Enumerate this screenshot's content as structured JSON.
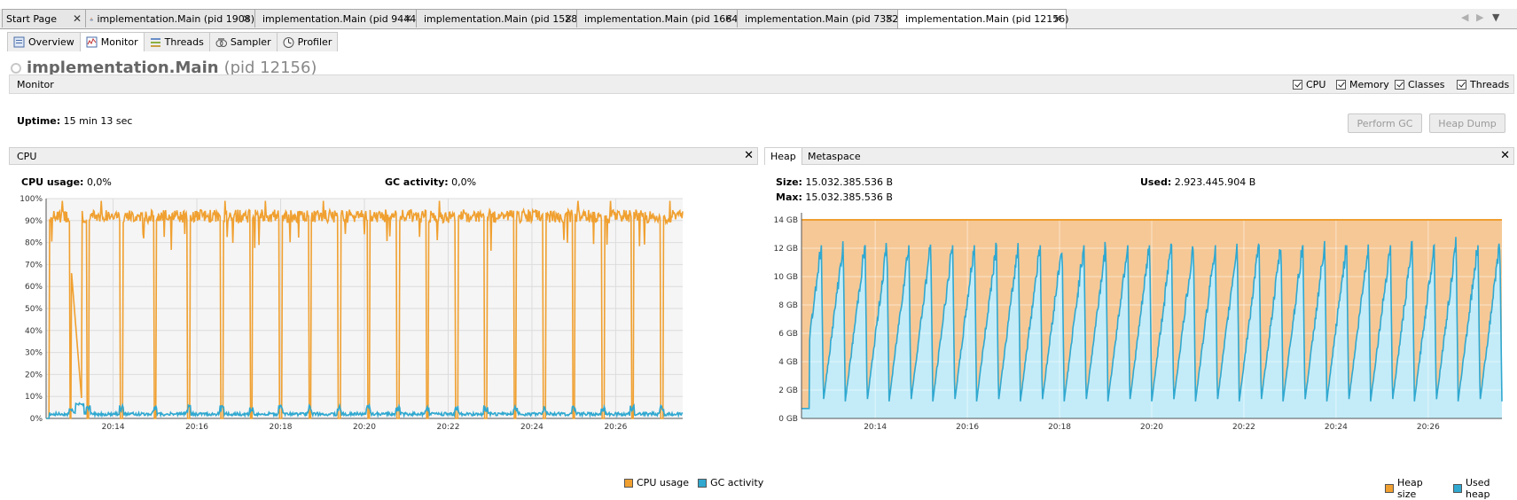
{
  "doc_tabs": [
    {
      "label": "Start Page",
      "icon": "start-page-icon",
      "active": false
    },
    {
      "label": "implementation.Main (pid 1908)",
      "icon": "java-app-icon",
      "active": false
    },
    {
      "label": "implementation.Main (pid 9444)",
      "icon": "java-app-icon",
      "active": false
    },
    {
      "label": "implementation.Main (pid 1528)",
      "icon": "java-app-icon",
      "active": false
    },
    {
      "label": "implementation.Main (pid 1664)",
      "icon": "java-app-icon",
      "active": false
    },
    {
      "label": "implementation.Main (pid 7352)",
      "icon": "java-app-icon",
      "active": false
    },
    {
      "label": "implementation.Main (pid 12156)",
      "icon": "java-app-icon",
      "active": true
    }
  ],
  "sub_tabs": [
    {
      "label": "Overview",
      "icon": "overview-icon",
      "active": false
    },
    {
      "label": "Monitor",
      "icon": "monitor-icon",
      "active": true
    },
    {
      "label": "Threads",
      "icon": "threads-icon",
      "active": false
    },
    {
      "label": "Sampler",
      "icon": "sampler-icon",
      "active": false
    },
    {
      "label": "Profiler",
      "icon": "profiler-icon",
      "active": false
    }
  ],
  "title": {
    "main": "implementation.Main",
    "pid": "(pid 12156)"
  },
  "monitor_bar": {
    "label": "Monitor",
    "checks": [
      {
        "label": "CPU",
        "checked": true
      },
      {
        "label": "Memory",
        "checked": true
      },
      {
        "label": "Classes",
        "checked": true
      },
      {
        "label": "Threads",
        "checked": true
      }
    ]
  },
  "uptime": {
    "label": "Uptime:",
    "value": "15 min 13 sec"
  },
  "buttons": {
    "perform_gc": "Perform GC",
    "heap_dump": "Heap Dump"
  },
  "cpu_panel": {
    "title": "CPU",
    "cpu_usage_label": "CPU usage:",
    "cpu_usage_value": "0,0%",
    "gc_activity_label": "GC activity:",
    "gc_activity_value": "0,0%",
    "legend": [
      {
        "label": "CPU usage",
        "color": "#f0a030"
      },
      {
        "label": "GC activity",
        "color": "#30a8d0"
      }
    ]
  },
  "heap_panel": {
    "tabs": [
      "Heap",
      "Metaspace"
    ],
    "size_label": "Size:",
    "size_value": "15.032.385.536 B",
    "used_label": "Used:",
    "used_value": "2.923.445.904 B",
    "max_label": "Max:",
    "max_value": "15.032.385.536 B",
    "legend": [
      {
        "label": "Heap size",
        "color": "#f0a030"
      },
      {
        "label": "Used heap",
        "color": "#30a8d0"
      }
    ]
  },
  "colors": {
    "cpu": "#f0a030",
    "gc": "#30a8d0",
    "heap_fill": "#f6c896",
    "used_fill": "#c4ecf8"
  },
  "chart_data": [
    {
      "type": "line",
      "title": "CPU",
      "xlabel": "",
      "ylabel": "",
      "x_ticks": [
        "20:14",
        "20:16",
        "20:18",
        "20:20",
        "20:22",
        "20:24",
        "20:26"
      ],
      "y_ticks": [
        "0%",
        "10%",
        "20%",
        "30%",
        "40%",
        "50%",
        "60%",
        "70%",
        "80%",
        "90%",
        "100%"
      ],
      "ylim": [
        0,
        100
      ],
      "x_range_min": [
        12.4,
        27.6
      ],
      "grid": true,
      "legend_position": "bottom-right",
      "series": [
        {
          "name": "CPU usage",
          "baseline": 92,
          "min": 84,
          "max": 99,
          "drops_to_zero_times_min": [
            13.0,
            13.4,
            14.2,
            15.0,
            15.8,
            16.6,
            17.3,
            18.0,
            18.7,
            19.4,
            20.1,
            20.8,
            21.5,
            22.2,
            22.9,
            23.6,
            24.3,
            25.0,
            25.7,
            26.4,
            27.1
          ]
        },
        {
          "name": "GC activity",
          "baseline": 2,
          "min": 0,
          "max": 7
        }
      ]
    },
    {
      "type": "area",
      "title": "Heap",
      "xlabel": "",
      "ylabel": "",
      "x_ticks": [
        "20:14",
        "20:16",
        "20:18",
        "20:20",
        "20:22",
        "20:24",
        "20:26"
      ],
      "y_ticks": [
        "0 GB",
        "2 GB",
        "4 GB",
        "6 GB",
        "8 GB",
        "10 GB",
        "12 GB",
        "14 GB"
      ],
      "ylim": [
        0,
        14.5
      ],
      "x_range_min": [
        12.4,
        27.6
      ],
      "grid": true,
      "legend_position": "bottom-right",
      "series": [
        {
          "name": "Heap size",
          "value_gb": 14.0
        },
        {
          "name": "Used heap",
          "sawtooth_low_gb": 0.7,
          "sawtooth_high_gb": 13.0,
          "cycles": 32
        }
      ]
    }
  ]
}
